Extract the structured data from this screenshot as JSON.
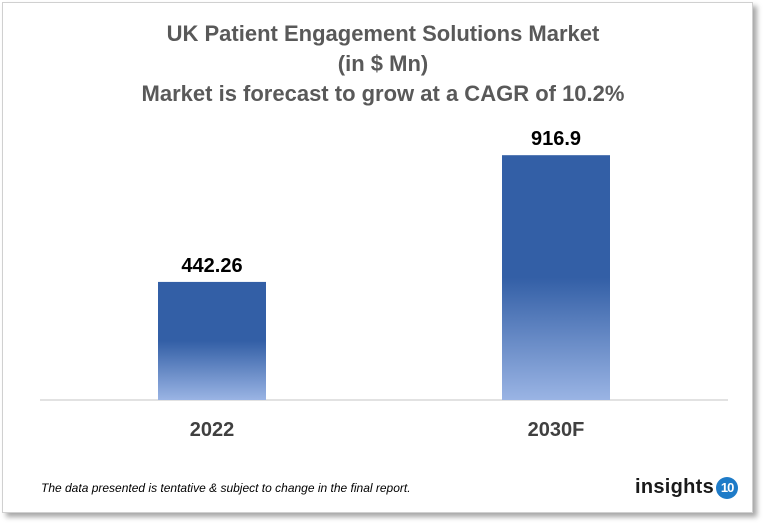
{
  "chart_data": {
    "type": "bar",
    "title": [
      "UK Patient Engagement Solutions Market",
      "(in $ Mn)",
      "Market is forecast to grow at a CAGR of 10.2%"
    ],
    "categories": [
      "2022",
      "2030F"
    ],
    "values": [
      442.26,
      916.9
    ],
    "data_labels": [
      "442.26",
      "916.9"
    ],
    "xlabel": "",
    "ylabel": "",
    "ylim": [
      0,
      1000
    ],
    "grid": false,
    "colors": {
      "bar_top": "#335fa6",
      "bar_bottom": "#9ab4e4"
    }
  },
  "footnote": "The data presented is tentative & subject to change in the final report.",
  "logo": {
    "text": "insights",
    "badge": "10"
  }
}
